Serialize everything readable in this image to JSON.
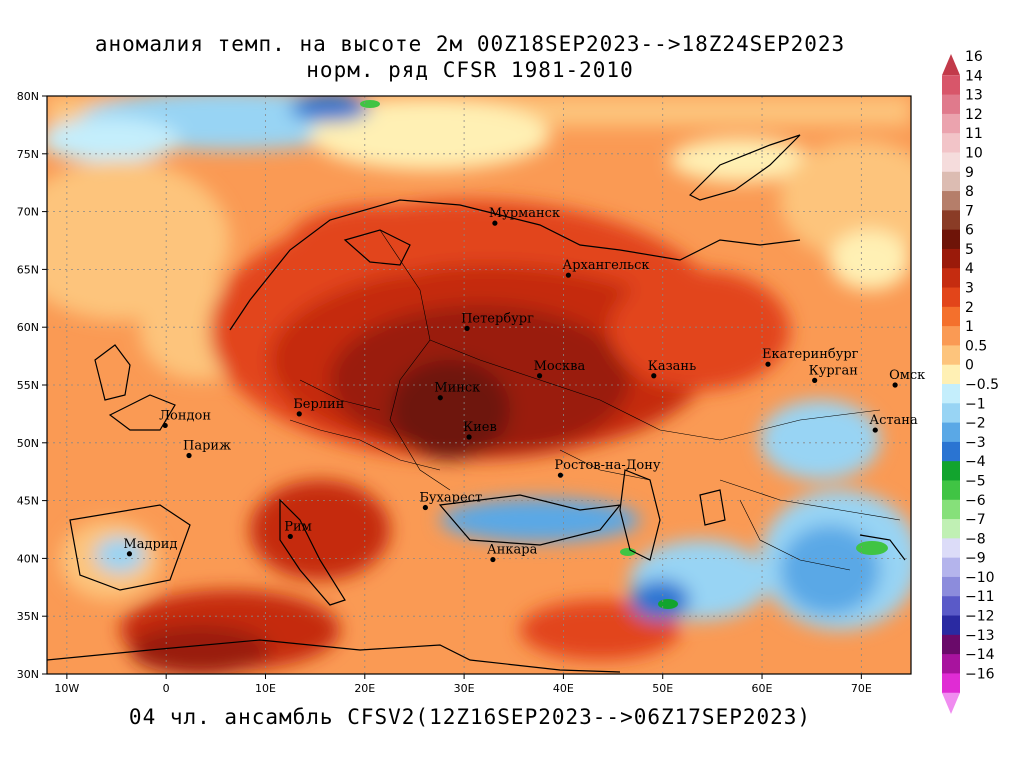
{
  "title": {
    "line1": "аномалия темп. на высоте 2м 00Z18SEP2023-->18Z24SEP2023",
    "line2": "норм. ряд CFSR 1981-2010"
  },
  "footer": "04 чл. ансамбль CFSV2(12Z16SEP2023-->06Z17SEP2023)",
  "map": {
    "lat_range": [
      30,
      80
    ],
    "lon_range": [
      -12,
      75
    ],
    "lat_ticks": [
      "30N",
      "35N",
      "40N",
      "45N",
      "50N",
      "55N",
      "60N",
      "65N",
      "70N",
      "75N",
      "80N"
    ],
    "lon_ticks": [
      "10W",
      "0",
      "10E",
      "20E",
      "30E",
      "40E",
      "50E",
      "60E",
      "70E"
    ],
    "cities": [
      {
        "name": "Мурманск",
        "lon": 33.1,
        "lat": 69.0
      },
      {
        "name": "Архангельск",
        "lon": 40.5,
        "lat": 64.5
      },
      {
        "name": "Петербург",
        "lon": 30.3,
        "lat": 59.9
      },
      {
        "name": "Москва",
        "lon": 37.6,
        "lat": 55.8
      },
      {
        "name": "Казань",
        "lon": 49.1,
        "lat": 55.8
      },
      {
        "name": "Екатеринбург",
        "lon": 60.6,
        "lat": 56.8
      },
      {
        "name": "Курган",
        "lon": 65.3,
        "lat": 55.4
      },
      {
        "name": "Омск",
        "lon": 73.4,
        "lat": 55.0
      },
      {
        "name": "Астана",
        "lon": 71.4,
        "lat": 51.1
      },
      {
        "name": "Минск",
        "lon": 27.6,
        "lat": 53.9
      },
      {
        "name": "Берлин",
        "lon": 13.4,
        "lat": 52.5
      },
      {
        "name": "Лондон",
        "lon": -0.1,
        "lat": 51.5
      },
      {
        "name": "Париж",
        "lon": 2.3,
        "lat": 48.9
      },
      {
        "name": "Киев",
        "lon": 30.5,
        "lat": 50.5
      },
      {
        "name": "Ростов-на-Дону",
        "lon": 39.7,
        "lat": 47.2
      },
      {
        "name": "Бухарест",
        "lon": 26.1,
        "lat": 44.4
      },
      {
        "name": "Рим",
        "lon": 12.5,
        "lat": 41.9
      },
      {
        "name": "Мадрид",
        "lon": -3.7,
        "lat": 40.4
      },
      {
        "name": "Анкара",
        "lon": 32.9,
        "lat": 39.9
      }
    ]
  },
  "colorbar": {
    "labels": [
      "16",
      "14",
      "13",
      "12",
      "11",
      "10",
      "9",
      "8",
      "7",
      "6",
      "5",
      "4",
      "3",
      "2",
      "1",
      "0.5",
      "0",
      "−0.5",
      "−1",
      "−2",
      "−3",
      "−4",
      "−5",
      "−6",
      "−7",
      "−8",
      "−9",
      "−10",
      "−11",
      "−12",
      "−13",
      "−14",
      "−16"
    ],
    "colors": [
      "#c23a4a",
      "#d8566a",
      "#e07a8c",
      "#eba3ae",
      "#f2c4c8",
      "#f5dcdc",
      "#dcbcb2",
      "#b57e6a",
      "#8a3c26",
      "#6e1408",
      "#9a1a0a",
      "#c52c10",
      "#e2451a",
      "#f4702c",
      "#fa9a54",
      "#fdc47c",
      "#fff0b4",
      "#c4eefc",
      "#98d4f4",
      "#5aa8e6",
      "#2a74d2",
      "#12a42e",
      "#40c444",
      "#86e07a",
      "#c0f0b4",
      "#dcdcf8",
      "#b4b4ec",
      "#8c8cdc",
      "#5a5ac8",
      "#2a2aa2",
      "#6a0a6a",
      "#a8139e",
      "#e02cd4",
      "#f08cf0"
    ]
  }
}
